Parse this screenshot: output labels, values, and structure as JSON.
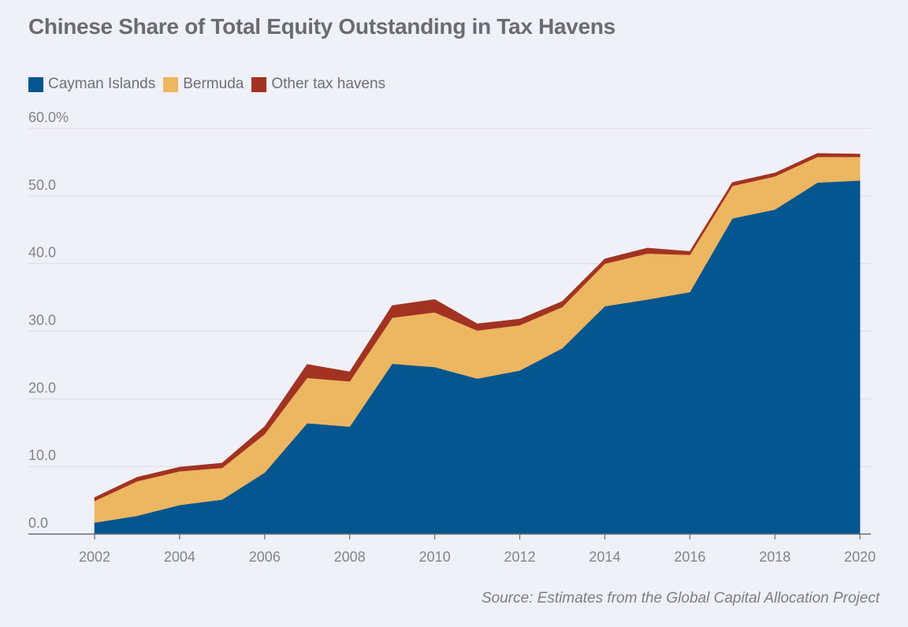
{
  "title": "Chinese Share of Total Equity Outstanding in Tax Havens",
  "source": "Source: Estimates from the Global Capital Allocation Project",
  "legend": [
    {
      "label": "Cayman Islands",
      "color": "#03568f"
    },
    {
      "label": "Bermuda",
      "color": "#edb661"
    },
    {
      "label": "Other tax havens",
      "color": "#a23322"
    }
  ],
  "chart_data": {
    "type": "area",
    "stacked": true,
    "title": "Chinese Share of Total Equity Outstanding in Tax Havens",
    "xlabel": "",
    "ylabel": "",
    "x": [
      2002,
      2003,
      2004,
      2005,
      2006,
      2007,
      2008,
      2009,
      2010,
      2011,
      2012,
      2013,
      2014,
      2015,
      2016,
      2017,
      2018,
      2019,
      2020
    ],
    "series": [
      {
        "name": "Cayman Islands",
        "color": "#03568f",
        "values": [
          1.7,
          2.7,
          4.3,
          5.1,
          9.1,
          16.4,
          15.9,
          25.2,
          24.7,
          23.0,
          24.2,
          27.5,
          33.7,
          34.7,
          35.8,
          46.7,
          48.0,
          52.0,
          52.3
        ]
      },
      {
        "name": "Bermuda",
        "color": "#edb661",
        "values": [
          3.2,
          5.1,
          5.0,
          4.7,
          5.7,
          6.7,
          6.7,
          6.8,
          8.1,
          7.1,
          6.7,
          6.1,
          6.3,
          6.8,
          5.5,
          4.8,
          4.9,
          3.8,
          3.5
        ]
      },
      {
        "name": "Other tax havens",
        "color": "#a23322",
        "values": [
          0.5,
          0.6,
          0.6,
          0.7,
          1.1,
          2.0,
          1.4,
          1.8,
          1.9,
          1.0,
          0.9,
          0.8,
          0.7,
          0.8,
          0.5,
          0.5,
          0.5,
          0.5,
          0.4
        ]
      }
    ],
    "ylim": [
      0,
      60
    ],
    "yticks": [
      0,
      10,
      20,
      30,
      40,
      50,
      60
    ],
    "ytick_labels": [
      "0.0",
      "10.0",
      "20.0",
      "30.0",
      "40.0",
      "50.0",
      "60.0%"
    ],
    "xticks": [
      2002,
      2004,
      2006,
      2008,
      2010,
      2012,
      2014,
      2016,
      2018,
      2020
    ],
    "xtick_labels": [
      "2002",
      "2004",
      "2006",
      "2008",
      "2010",
      "2012",
      "2014",
      "2016",
      "2018",
      "2020"
    ],
    "xlim": [
      2000.3,
      2020.4
    ],
    "grid": true,
    "legend_position": "top-left"
  }
}
